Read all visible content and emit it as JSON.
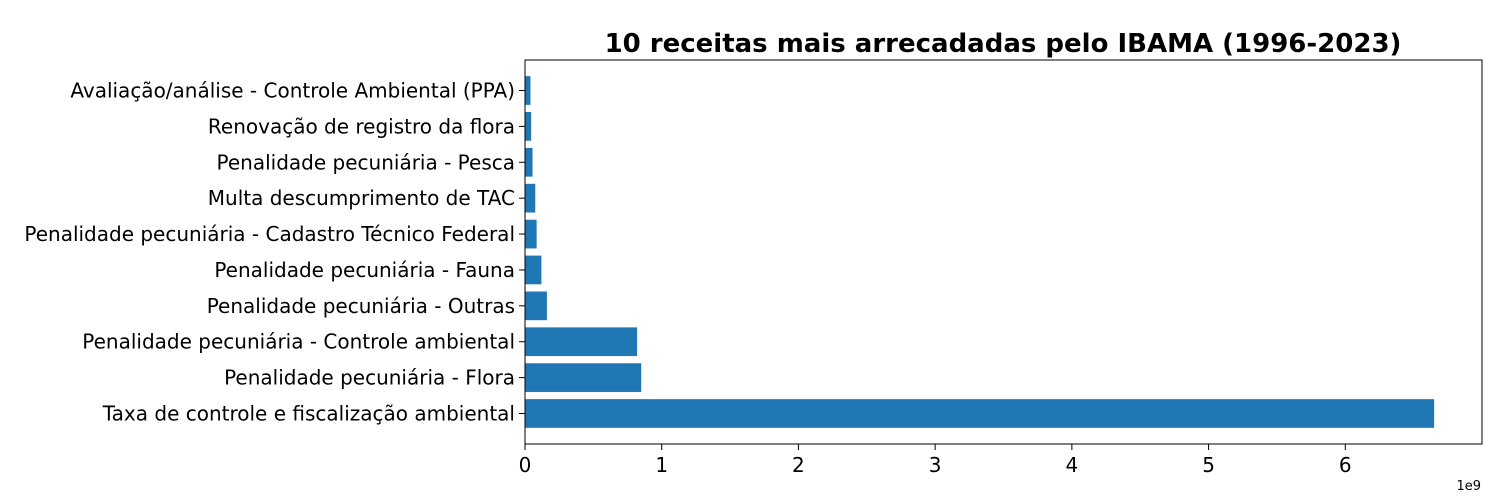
{
  "chart_data": {
    "type": "bar",
    "orientation": "horizontal",
    "title": "10 receitas mais arrecadadas pelo IBAMA (1996-2023)",
    "xlabel": "",
    "ylabel": "",
    "x_offset_label": "1e9",
    "xlim": [
      0,
      7000000000.0
    ],
    "x_ticks": [
      0,
      1000000000.0,
      2000000000.0,
      3000000000.0,
      4000000000.0,
      5000000000.0,
      6000000000.0
    ],
    "x_tick_labels": [
      "0",
      "1",
      "2",
      "3",
      "4",
      "5",
      "6"
    ],
    "grid": false,
    "bar_color": "#1f77b4",
    "categories": [
      "Taxa de controle e fiscalização ambiental",
      "Penalidade pecuniária - Flora",
      "Penalidade pecuniária - Controle ambiental",
      "Penalidade pecuniária - Outras",
      "Penalidade pecuniária - Fauna",
      "Penalidade pecuniária - Cadastro Técnico Federal",
      "Multa descumprimento de TAC",
      "Penalidade pecuniária - Pesca",
      "Renovação de registro da flora",
      "Avaliação/análise - Controle Ambiental (PPA)"
    ],
    "values": [
      6650000000.0,
      850000000.0,
      820000000.0,
      160000000.0,
      120000000.0,
      85000000.0,
      75000000.0,
      55000000.0,
      45000000.0,
      40000000.0
    ]
  }
}
